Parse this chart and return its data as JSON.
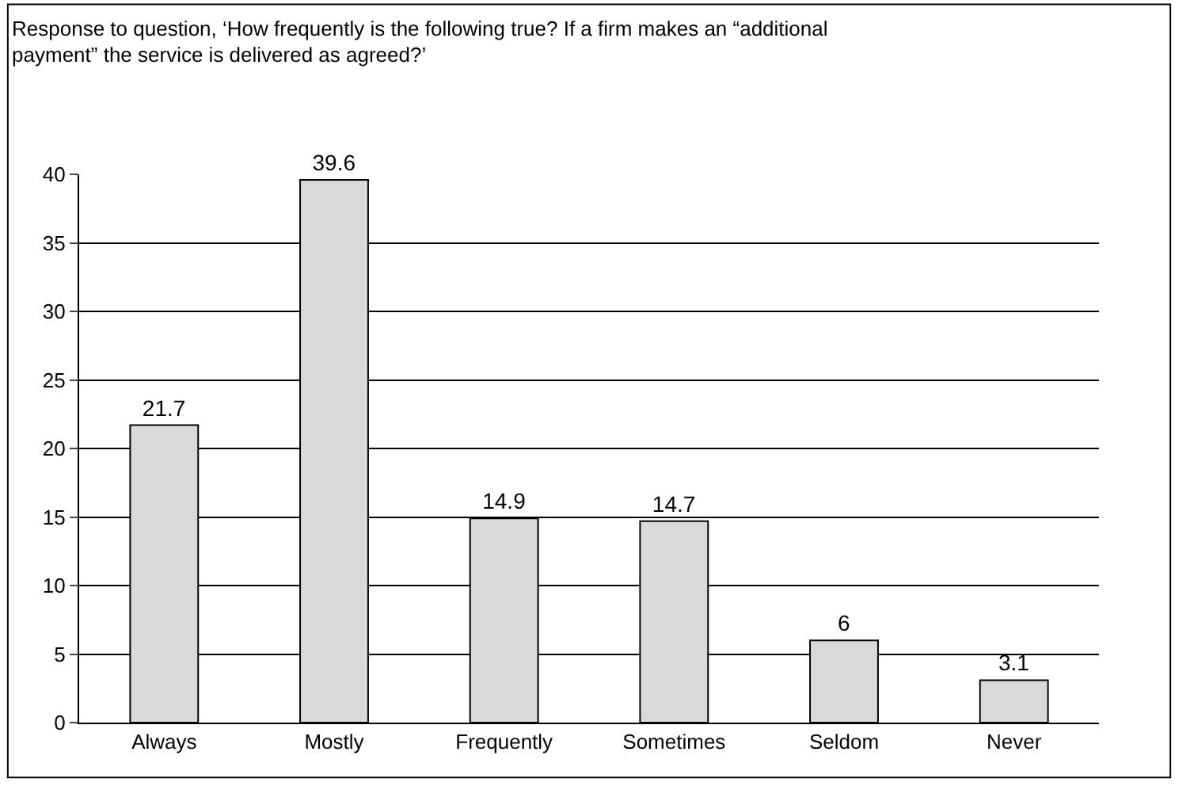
{
  "chart_data": {
    "type": "bar",
    "title": "Response to question, ‘How frequently is the following true? If a firm makes an “additional payment” the service is delivered as agreed?’",
    "categories": [
      "Always",
      "Mostly",
      "Frequently",
      "Sometimes",
      "Seldom",
      "Never"
    ],
    "values": [
      21.7,
      39.6,
      14.9,
      14.7,
      6,
      3.1
    ],
    "color": "#d9d9d9",
    "ylim": [
      0,
      40
    ],
    "yticks": [
      0,
      5,
      10,
      15,
      20,
      25,
      30,
      35,
      40
    ],
    "grid": "y",
    "data_labels": true,
    "legend": false
  }
}
